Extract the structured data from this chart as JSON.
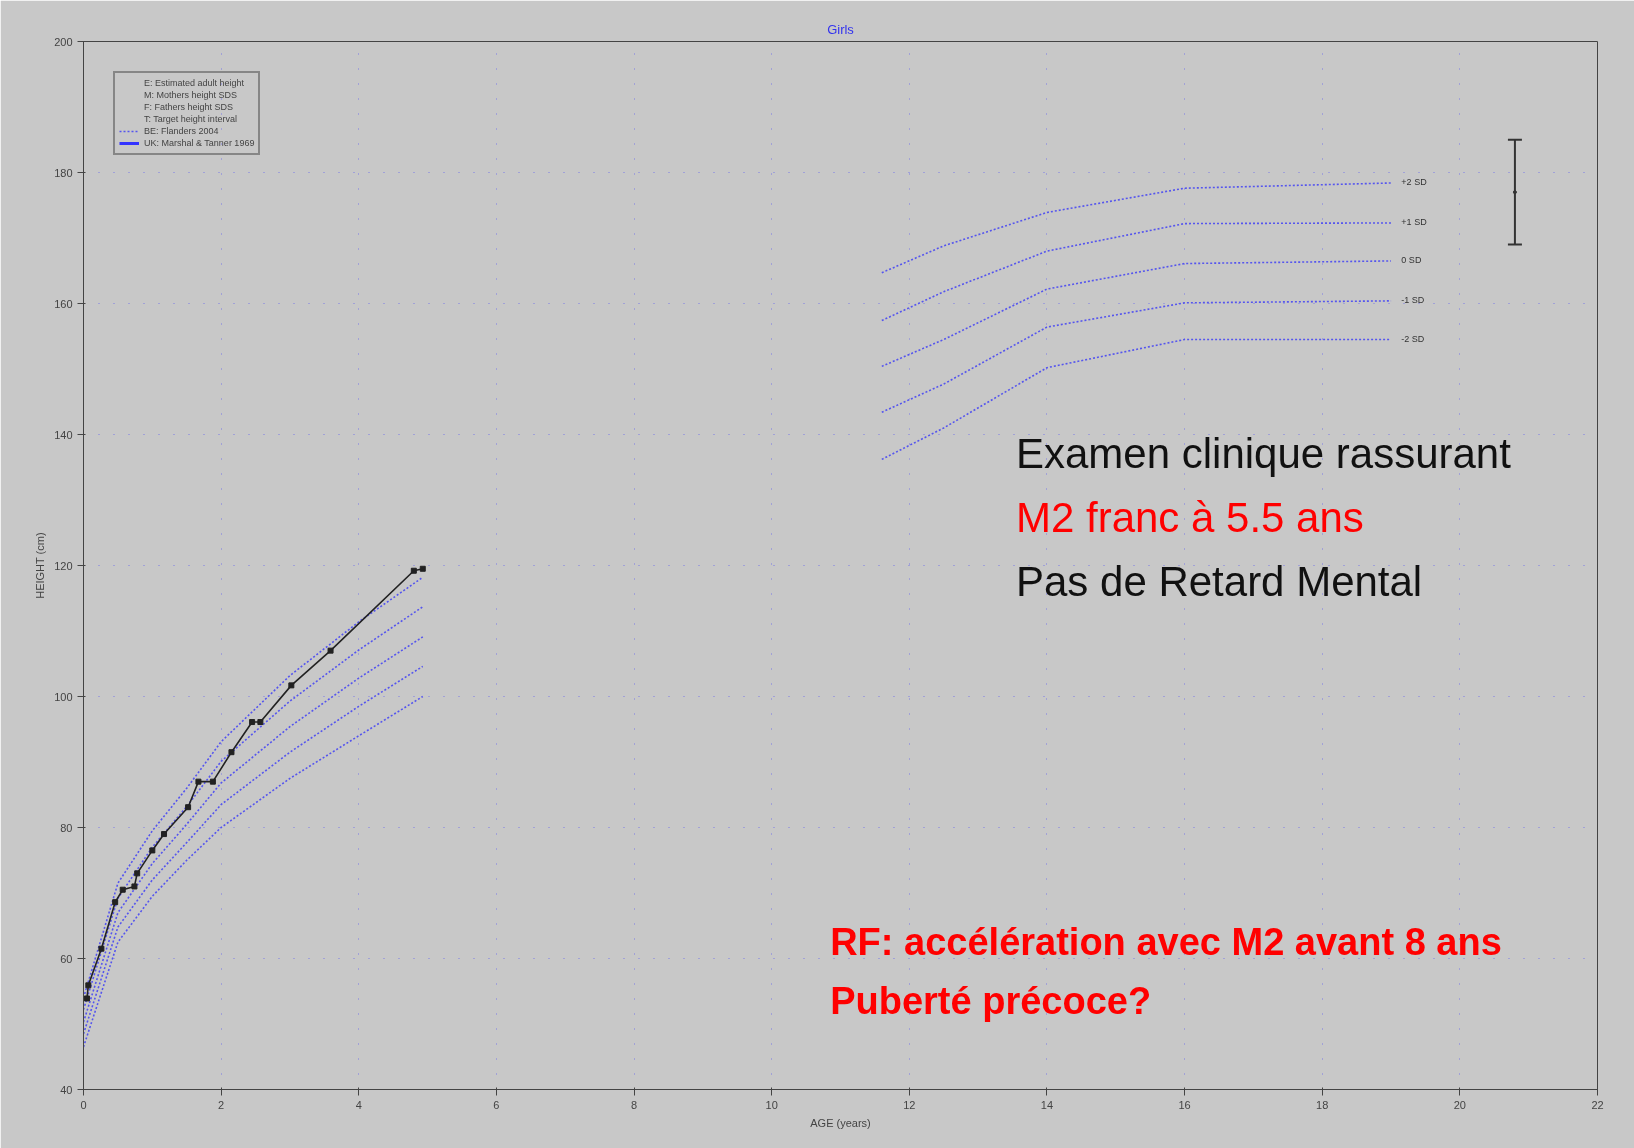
{
  "chart_data": {
    "type": "line",
    "title": "Girls",
    "xlabel": "AGE (years)",
    "ylabel": "HEIGHT (cm)",
    "xlim": [
      0,
      22
    ],
    "xticks": [
      0,
      2,
      4,
      6,
      8,
      10,
      12,
      14,
      16,
      18,
      20,
      22
    ],
    "ylim": [
      40,
      200
    ],
    "yticks": [
      40,
      60,
      80,
      100,
      120,
      140,
      160,
      180,
      200
    ],
    "grid": true,
    "line_style": "dotted",
    "marker": "none",
    "x": [
      0,
      0.5,
      1,
      1.5,
      2,
      3,
      4,
      4.93,
      8,
      11.6,
      12.5,
      14,
      16,
      19
    ],
    "series": [
      {
        "name": "+2 SD",
        "color": "#5555ee",
        "values": [
          54,
          71.5,
          79.5,
          86,
          93.1,
          103.2,
          111.4,
          118.2,
          null,
          164.7,
          168.8,
          173.9,
          177.6,
          178.4
        ]
      },
      {
        "name": "+1 SD",
        "color": "#5555ee",
        "values": [
          52.2,
          69.2,
          77,
          83.2,
          90.1,
          99.3,
          107.1,
          113.7,
          null,
          157.4,
          161.8,
          168,
          172.2,
          172.3
        ]
      },
      {
        "name": "0 SD",
        "color": "#5555ee",
        "values": [
          50.3,
          67,
          74.5,
          80.5,
          86.8,
          95.4,
          102.8,
          109.1,
          null,
          150.4,
          154.5,
          162.2,
          166.1,
          166.5
        ]
      },
      {
        "name": "-1 SD",
        "color": "#5555ee",
        "values": [
          48.5,
          64.8,
          72,
          77.7,
          83.5,
          91.5,
          98.5,
          104.6,
          null,
          143.4,
          147.7,
          156.4,
          160.1,
          160.4
        ]
      },
      {
        "name": "-2 SD",
        "color": "#5555ee",
        "values": [
          46.5,
          62.5,
          69.5,
          75,
          80,
          87.5,
          94,
          100,
          null,
          136.2,
          141,
          150.2,
          154.5,
          154.5
        ]
      },
      {
        "color": "#222222",
        "line_style": "solid",
        "marker": "square",
        "x": [
          0.05,
          0.07,
          0.26,
          0.46,
          0.57,
          0.74,
          0.78,
          1.0,
          1.17,
          1.52,
          1.67,
          1.88,
          2.15,
          2.45,
          2.57,
          3.02,
          3.59,
          4.8,
          4.93
        ],
        "values": [
          53.9,
          55.9,
          61.5,
          68.6,
          70.5,
          71.0,
          73.0,
          76.5,
          79.0,
          83.1,
          87.0,
          87.0,
          91.5,
          96.1,
          96.1,
          101.7,
          107.0,
          119.2,
          119.5
        ]
      },
      {
        "type": "scatter",
        "color": "#333333",
        "marker": "circle",
        "x": [
          20.8
        ],
        "values": [
          177
        ],
        "errors": [
          [
            169,
            185
          ]
        ]
      }
    ],
    "annotations": [
      "E: Estimated adult height",
      "M: Mothers height SDS",
      "F: Fathers height SDS",
      "T: Target height interval",
      "BE: Flanders 2004",
      "UK: Marshal & Tanner 1969",
      "Examen clinique rassurant",
      "M2 franc à 5.5 ans",
      "Pas de Retard Mental",
      "RF: accélération avec M2 avant 8 ans",
      "Puberté précoce?"
    ]
  }
}
